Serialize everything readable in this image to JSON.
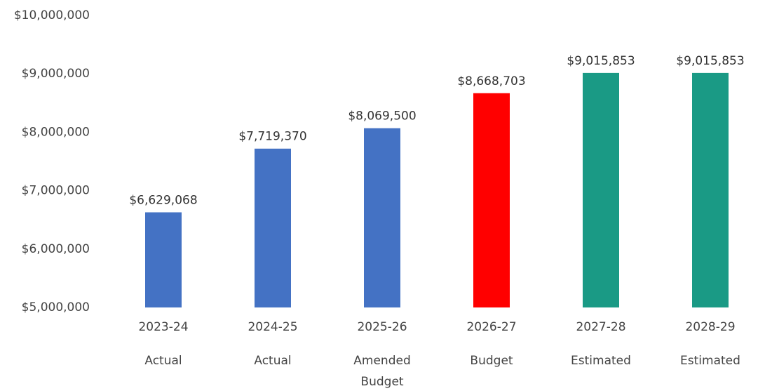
{
  "chart_data": {
    "type": "bar",
    "title": "",
    "xlabel": "",
    "ylabel": "",
    "ylim": [
      5000000,
      10000000
    ],
    "yticks": [
      5000000,
      6000000,
      7000000,
      8000000,
      9000000,
      10000000
    ],
    "ytick_labels": [
      "$5,000,000",
      "$6,000,000",
      "$7,000,000",
      "$8,000,000",
      "$9,000,000",
      "$10,000,000"
    ],
    "grid": false,
    "legend": "none",
    "categories": [
      "2023-24",
      "2024-25",
      "2025-26",
      "2026-27",
      "2027-28",
      "2028-29"
    ],
    "sublabels": [
      [
        "Actual"
      ],
      [
        "Actual"
      ],
      [
        "Amended",
        "Budget"
      ],
      [
        "Budget"
      ],
      [
        "Estimated"
      ],
      [
        "Estimated"
      ]
    ],
    "values": [
      6629068,
      7719370,
      8069500,
      8668703,
      9015853,
      9015853
    ],
    "data_labels": [
      "$6,629,068",
      "$7,719,370",
      "$8,069,500",
      "$8,668,703",
      "$9,015,853",
      "$9,015,853"
    ],
    "bar_colors": [
      "#4472C4",
      "#4472C4",
      "#4472C4",
      "#FF0000",
      "#1A9A85",
      "#1A9A85"
    ]
  }
}
